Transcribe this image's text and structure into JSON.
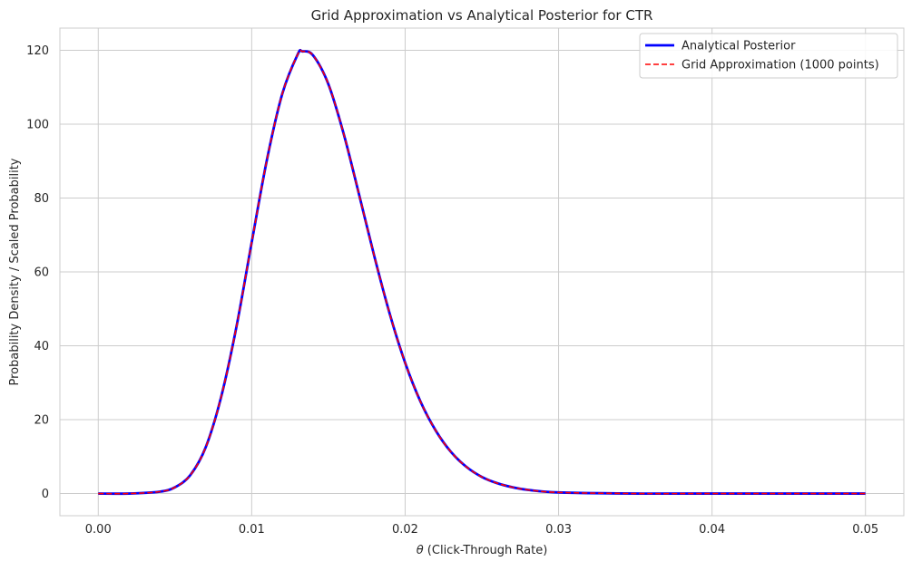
{
  "chart_data": {
    "type": "line",
    "title": "Grid Approximation vs Analytical Posterior for CTR",
    "xlabel_symbol": "θ",
    "xlabel_text": " (Click-Through Rate)",
    "ylabel": "Probability Density / Scaled Probability",
    "xlim": [
      -0.0025,
      0.0525
    ],
    "ylim": [
      -6,
      126
    ],
    "x_ticks": [
      0.0,
      0.01,
      0.02,
      0.03,
      0.04,
      0.05
    ],
    "x_tick_labels": [
      "0.00",
      "0.01",
      "0.02",
      "0.03",
      "0.04",
      "0.05"
    ],
    "y_ticks": [
      0,
      20,
      40,
      60,
      80,
      100,
      120
    ],
    "y_tick_labels": [
      "0",
      "20",
      "40",
      "60",
      "80",
      "100",
      "120"
    ],
    "grid": true,
    "legend_position": "top-right",
    "series": [
      {
        "name": "Analytical Posterior",
        "color": "#0000ff",
        "style": "solid",
        "x": [
          0.0,
          0.002,
          0.004,
          0.005,
          0.006,
          0.007,
          0.008,
          0.009,
          0.01,
          0.011,
          0.012,
          0.013,
          0.0133,
          0.014,
          0.015,
          0.016,
          0.017,
          0.018,
          0.019,
          0.02,
          0.021,
          0.022,
          0.023,
          0.024,
          0.025,
          0.026,
          0.027,
          0.028,
          0.03,
          0.035,
          0.04,
          0.045,
          0.05
        ],
        "y": [
          0,
          0,
          0.5,
          1.7,
          5,
          12.5,
          26,
          45,
          68,
          90.5,
          108.3,
          118.9,
          119.7,
          118.6,
          110.8,
          97.3,
          80.9,
          64.1,
          48.6,
          35.4,
          24.9,
          17.0,
          11.2,
          7.2,
          4.5,
          2.8,
          1.7,
          1.0,
          0.3,
          0,
          0,
          0,
          0
        ]
      },
      {
        "name": "Grid Approximation (1000 points)",
        "color": "#ff0000",
        "style": "dashed",
        "x": [
          0.0,
          0.002,
          0.004,
          0.005,
          0.006,
          0.007,
          0.008,
          0.009,
          0.01,
          0.011,
          0.012,
          0.013,
          0.0133,
          0.014,
          0.015,
          0.016,
          0.017,
          0.018,
          0.019,
          0.02,
          0.021,
          0.022,
          0.023,
          0.024,
          0.025,
          0.026,
          0.027,
          0.028,
          0.03,
          0.035,
          0.04,
          0.045,
          0.05
        ],
        "y": [
          0,
          0,
          0.5,
          1.7,
          5,
          12.5,
          26,
          45,
          68,
          90.5,
          108.3,
          118.9,
          119.7,
          118.6,
          110.8,
          97.3,
          80.9,
          64.1,
          48.6,
          35.4,
          24.9,
          17.0,
          11.2,
          7.2,
          4.5,
          2.8,
          1.7,
          1.0,
          0.3,
          0,
          0,
          0,
          0
        ]
      }
    ]
  }
}
